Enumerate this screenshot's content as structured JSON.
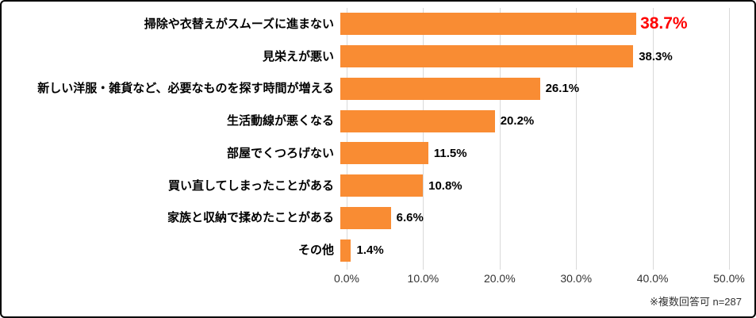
{
  "chart_data": {
    "type": "bar",
    "orientation": "horizontal",
    "title": "",
    "xlabel": "",
    "ylabel": "",
    "categories": [
      "掃除や衣替えがスムーズに進まない",
      "見栄えが悪い",
      "新しい洋服・雑貨など、必要なものを探す時間が増える",
      "生活動線が悪くなる",
      "部屋でくつろげない",
      "買い直してしまったことがある",
      "家族と収納で揉めたことがある",
      "その他"
    ],
    "values": [
      38.7,
      38.3,
      26.1,
      20.2,
      11.5,
      10.8,
      6.6,
      1.4
    ],
    "value_labels": [
      "38.7%",
      "38.3%",
      "26.1%",
      "20.2%",
      "11.5%",
      "10.8%",
      "6.6%",
      "1.4%"
    ],
    "highlight_index": 0,
    "xlim": [
      0,
      50
    ],
    "x_ticks": [
      "0.0%",
      "10.0%",
      "20.0%",
      "30.0%",
      "40.0%",
      "50.0%"
    ],
    "x_tick_values": [
      0,
      10,
      20,
      30,
      40,
      50
    ],
    "grid": true,
    "legend": "none",
    "colors": {
      "bar": "#f98c33",
      "highlight_value_label": "#ff0000",
      "value_label": "#000000",
      "category_label": "#000000",
      "gridline": "#d9d9d9",
      "axis_text": "#333333",
      "frame_border": "#000000",
      "background": "#ffffff"
    },
    "footnote": "※複数回答可  n=287"
  }
}
